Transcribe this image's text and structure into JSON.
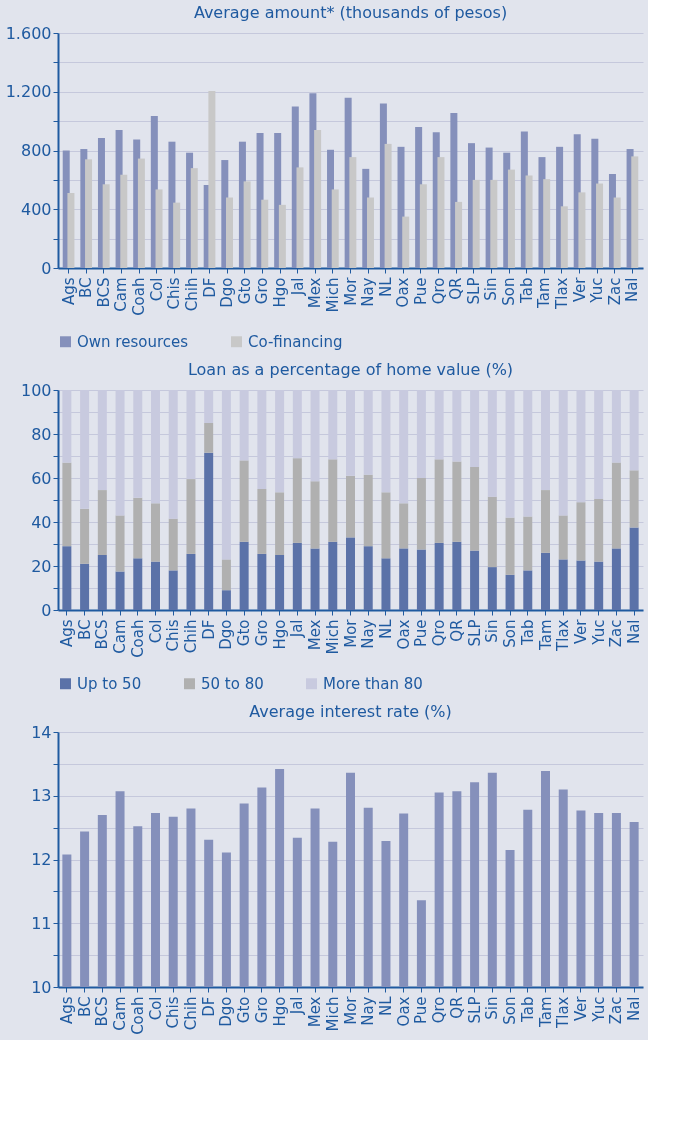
{
  "chart_data": [
    {
      "type": "bar",
      "title": "Average amount* (thousands of pesos)",
      "categories": [
        "Ags",
        "BC",
        "BCS",
        "Cam",
        "Coah",
        "Col",
        "Chis",
        "Chih",
        "DF",
        "Dgo",
        "Gto",
        "Gro",
        "Hgo",
        "Jal",
        "Mex",
        "Mich",
        "Mor",
        "Nay",
        "NL",
        "Oax",
        "Pue",
        "Qro",
        "QR",
        "SLP",
        "Sin",
        "Son",
        "Tab",
        "Tam",
        "Tlax",
        "Ver",
        "Yuc",
        "Zac",
        "Nal"
      ],
      "series": [
        {
          "name": "Own resources",
          "color": "#8590bb",
          "values": [
            800,
            810,
            885,
            940,
            875,
            1035,
            860,
            785,
            565,
            735,
            860,
            920,
            920,
            1100,
            1190,
            805,
            1160,
            675,
            1120,
            825,
            960,
            925,
            1055,
            850,
            820,
            785,
            930,
            755,
            825,
            910,
            880,
            640,
            810
          ]
        },
        {
          "name": "Co-financing",
          "color": "#c8c8c8",
          "values": [
            510,
            740,
            570,
            635,
            745,
            535,
            445,
            680,
            1205,
            480,
            590,
            465,
            430,
            685,
            940,
            535,
            755,
            480,
            845,
            350,
            570,
            755,
            450,
            600,
            600,
            670,
            630,
            605,
            420,
            515,
            575,
            480,
            760
          ]
        }
      ],
      "ylim": [
        0,
        1600
      ],
      "yticks": [
        0,
        {
          "value": 200,
          "label": null
        },
        400,
        {
          "value": 600,
          "label": null
        },
        800,
        {
          "value": 1000,
          "label": null
        },
        {
          "value": 1200,
          "label": "1.200"
        },
        {
          "value": 1400,
          "label": null
        },
        {
          "value": 1600,
          "label": "1.600"
        }
      ],
      "grid": "y",
      "legend": "bottom"
    },
    {
      "type": "bar",
      "title": "Loan as a percentage of home value (%)",
      "stacked": true,
      "categories": [
        "Ags",
        "BC",
        "BCS",
        "Cam",
        "Coah",
        "Col",
        "Chis",
        "Chih",
        "DF",
        "Dgo",
        "Gto",
        "Gro",
        "Hgo",
        "Jal",
        "Mex",
        "Mich",
        "Mor",
        "Nay",
        "NL",
        "Oax",
        "Pue",
        "Qro",
        "QR",
        "SLP",
        "Sin",
        "Son",
        "Tab",
        "Tam",
        "Tlax",
        "Ver",
        "Yuc",
        "Zac",
        "Nal"
      ],
      "series": [
        {
          "name": "Up to 50",
          "color": "#5b72a8",
          "values": [
            29,
            21,
            25,
            17.5,
            23.5,
            22,
            18,
            25.5,
            71.5,
            9,
            31,
            25.5,
            25,
            30.5,
            28,
            31,
            33,
            29,
            23.5,
            28,
            27.5,
            30.5,
            31,
            27,
            19.5,
            16,
            18,
            26,
            23,
            22.5,
            22,
            28,
            37.5
          ]
        },
        {
          "name": "50 to 80",
          "color": "#b0b0b0",
          "values": [
            38,
            25,
            29.5,
            25.5,
            27.5,
            26.5,
            23.5,
            34,
            13.5,
            14,
            37,
            29.5,
            28.5,
            38.5,
            30.5,
            37.5,
            28,
            32.5,
            30,
            20.5,
            32.5,
            38,
            36.5,
            38,
            32,
            26,
            24.5,
            28.5,
            20,
            26.5,
            28.5,
            39,
            26
          ]
        },
        {
          "name": "More than 80",
          "color": "#c8cadf",
          "values": [
            33,
            54,
            45.5,
            57,
            49,
            51.5,
            58.5,
            40.5,
            15,
            77,
            32,
            45,
            46.5,
            31,
            41.5,
            31.5,
            39,
            38.5,
            46.5,
            51.5,
            40,
            31.5,
            32.5,
            35,
            48.5,
            58,
            57.5,
            45.5,
            57,
            51,
            49.5,
            33,
            36.5
          ]
        }
      ],
      "ylim": [
        0,
        100
      ],
      "yticks": [
        0,
        {
          "value": 10,
          "label": null
        },
        20,
        {
          "value": 30,
          "label": null
        },
        40,
        {
          "value": 50,
          "label": null
        },
        60,
        {
          "value": 70,
          "label": null
        },
        80,
        {
          "value": 90,
          "label": null
        },
        100
      ],
      "grid": "y",
      "legend": "bottom"
    },
    {
      "type": "bar",
      "title": "Average interest rate (%)",
      "categories": [
        "Ags",
        "BC",
        "BCS",
        "Cam",
        "Coah",
        "Col",
        "Chis",
        "Chih",
        "DF",
        "Dgo",
        "Gto",
        "Gro",
        "Hgo",
        "Jal",
        "Mex",
        "Mich",
        "Mor",
        "Nay",
        "NL",
        "Oax",
        "Pue",
        "Qro",
        "QR",
        "SLP",
        "Sin",
        "Son",
        "Tab",
        "Tam",
        "Tlax",
        "Ver",
        "Yuc",
        "Zac",
        "Nal"
      ],
      "series": [
        {
          "color": "#8590bb",
          "values": [
            12.08,
            12.44,
            12.7,
            13.07,
            12.52,
            12.73,
            12.67,
            12.8,
            12.31,
            12.11,
            12.88,
            13.13,
            13.42,
            12.34,
            12.8,
            12.28,
            13.36,
            12.81,
            12.29,
            12.72,
            11.36,
            13.05,
            13.07,
            13.21,
            13.36,
            12.15,
            12.78,
            13.39,
            13.1,
            12.77,
            12.73,
            12.73,
            12.59
          ]
        }
      ],
      "ylim": [
        10,
        14
      ],
      "yticks": [
        10,
        {
          "value": 10.5,
          "label": null
        },
        11,
        {
          "value": 11.5,
          "label": null
        },
        12,
        {
          "value": 12.5,
          "label": null
        },
        13,
        {
          "value": 13.5,
          "label": null
        },
        14
      ],
      "grid": "y"
    }
  ]
}
